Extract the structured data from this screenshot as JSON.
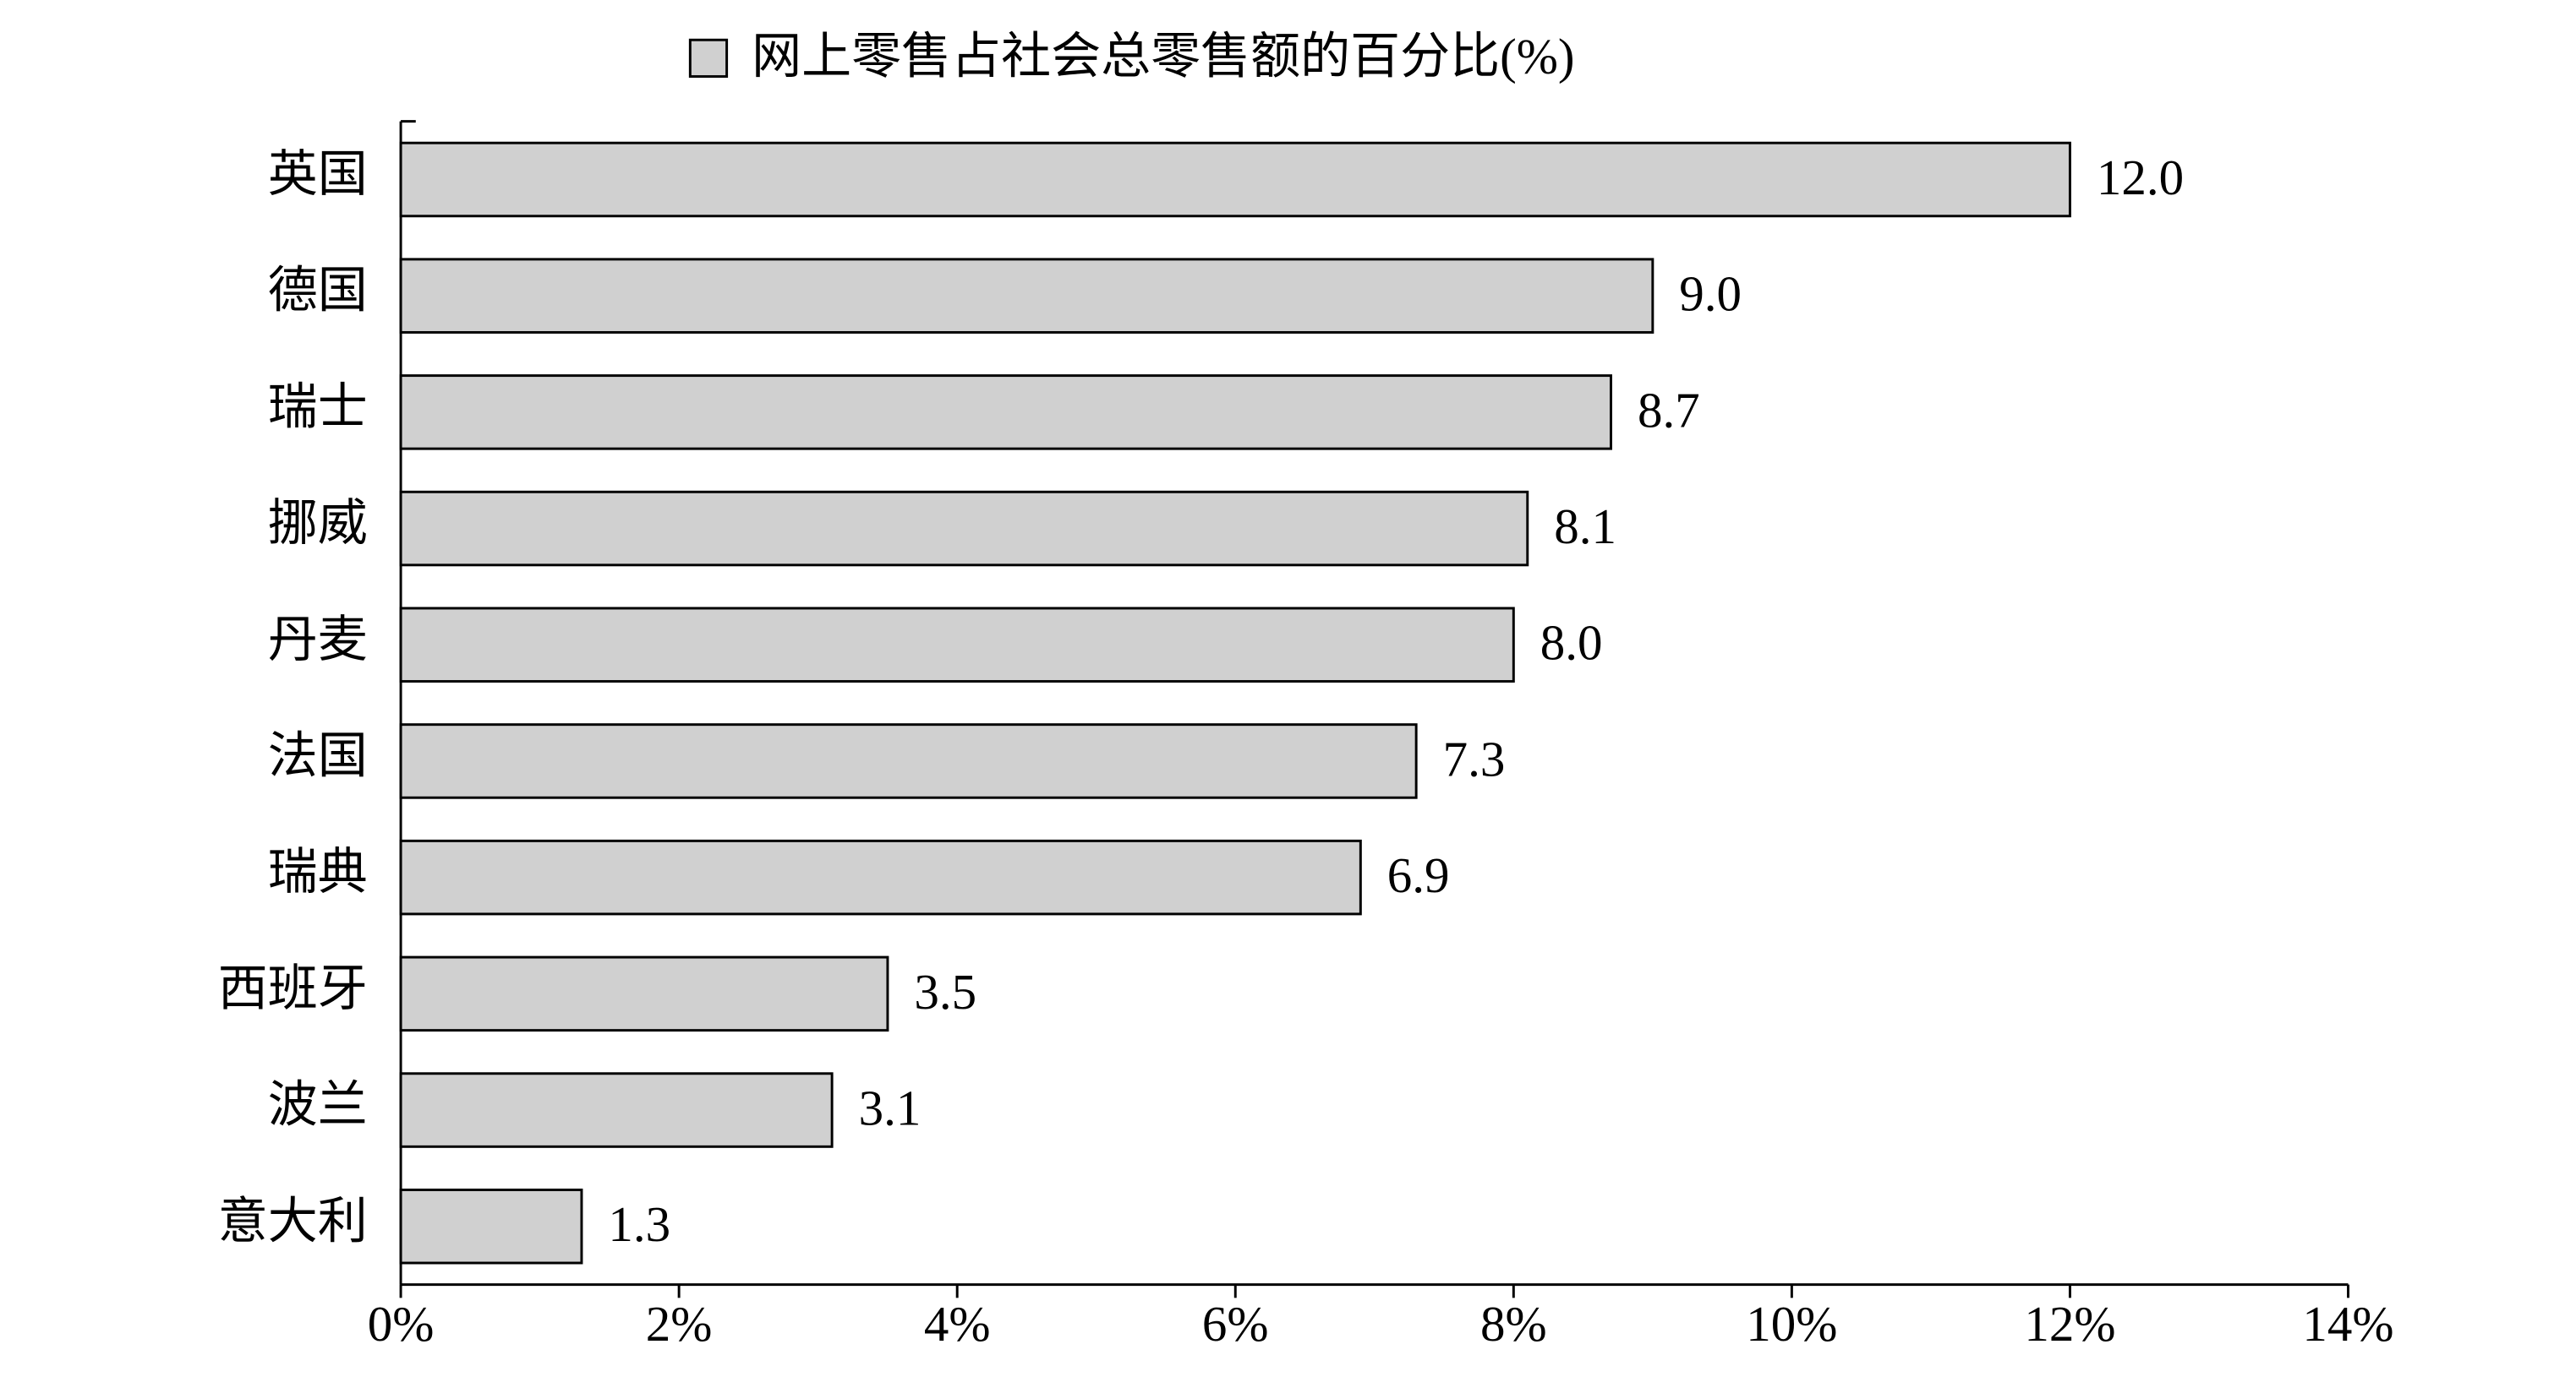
{
  "chart_data": {
    "type": "barh",
    "categories": [
      "英国",
      "德国",
      "瑞士",
      "挪威",
      "丹麦",
      "法国",
      "瑞典",
      "西班牙",
      "波兰",
      "意大利"
    ],
    "series": [
      {
        "name": "网上零售占社会总零售额的百分比(%)",
        "color": "#d0d0d0",
        "values": [
          12.0,
          9.0,
          8.7,
          8.1,
          8.0,
          7.3,
          6.9,
          3.5,
          3.1,
          1.3
        ],
        "value_labels": [
          "12.0",
          "9.0",
          "8.7",
          "8.1",
          "8.0",
          "7.3",
          "6.9",
          "3.5",
          "3.1",
          "1.3"
        ]
      }
    ],
    "xlim": [
      0,
      14
    ],
    "xticks": [
      {
        "value": 0,
        "label": "0%"
      },
      {
        "value": 2,
        "label": "2%"
      },
      {
        "value": 4,
        "label": "4%"
      },
      {
        "value": 6,
        "label": "6%"
      },
      {
        "value": 8,
        "label": "8%"
      },
      {
        "value": 10,
        "label": "10%"
      },
      {
        "value": 12,
        "label": "12%"
      },
      {
        "value": 14,
        "label": "14%"
      }
    ],
    "legend": "top"
  }
}
